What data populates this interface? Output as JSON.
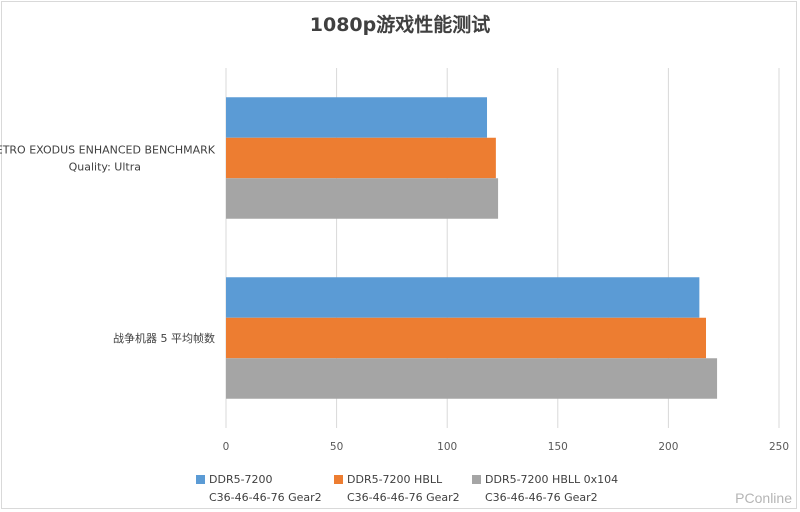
{
  "chart_data": {
    "type": "bar",
    "orientation": "horizontal",
    "title": "1080p游戏性能测试",
    "categories": [
      [
        "METRO EXODUS ENHANCED BENCHMARK",
        "Quality: Ultra"
      ],
      [
        "战争机器 5 平均帧数"
      ]
    ],
    "series": [
      {
        "name": "DDR5-7200\nC36-46-46-76 Gear2",
        "color": "#5b9bd5",
        "values": [
          118,
          214
        ]
      },
      {
        "name": "DDR5-7200 HBLL\nC36-46-46-76 Gear2",
        "color": "#ed7d31",
        "values": [
          122,
          217
        ]
      },
      {
        "name": "DDR5-7200 HBLL 0x104\nC36-46-46-76 Gear2",
        "color": "#a5a5a5",
        "values": [
          123,
          222
        ]
      }
    ],
    "xlim": [
      0,
      250
    ],
    "xticks": [
      0,
      50,
      100,
      150,
      200,
      250
    ],
    "grid": true,
    "legend_position": "bottom"
  },
  "watermark": "PConline"
}
